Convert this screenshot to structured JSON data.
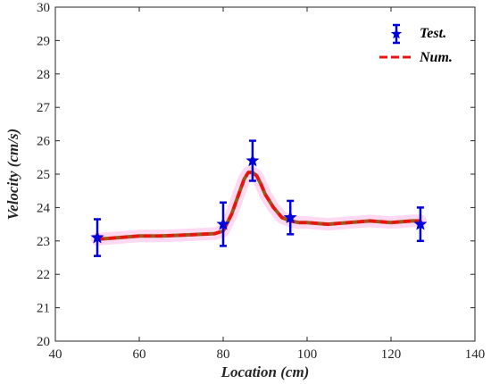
{
  "chart_data": {
    "type": "line",
    "xlabel": "Location (cm)",
    "ylabel": "Velocity (cm/s)",
    "xlim": [
      40,
      140
    ],
    "ylim": [
      20,
      30
    ],
    "xticks": [
      40,
      60,
      80,
      100,
      120,
      140
    ],
    "yticks": [
      20,
      21,
      22,
      23,
      24,
      25,
      26,
      27,
      28,
      29,
      30
    ],
    "grid": false,
    "legend_position": "top-right",
    "series": [
      {
        "name": "Test.",
        "kind": "errorbar",
        "color": "#0000dd",
        "marker": "star",
        "x": [
          50,
          80,
          87,
          96,
          127
        ],
        "y": [
          23.1,
          23.5,
          25.4,
          23.7,
          23.5
        ],
        "err": [
          0.55,
          0.65,
          0.6,
          0.5,
          0.5
        ]
      },
      {
        "name": "Num.",
        "kind": "line",
        "color": "#ee1111",
        "band_color": "#ffccee",
        "x": [
          50,
          55,
          60,
          65,
          70,
          75,
          78,
          80,
          82,
          84,
          85,
          86,
          87,
          88,
          89,
          90,
          92,
          94,
          96,
          98,
          100,
          105,
          110,
          115,
          120,
          125,
          127
        ],
        "y": [
          23.05,
          23.1,
          23.15,
          23.15,
          23.17,
          23.2,
          23.22,
          23.3,
          23.8,
          24.5,
          24.85,
          25.05,
          25.05,
          24.95,
          24.7,
          24.4,
          24.0,
          23.7,
          23.6,
          23.55,
          23.55,
          23.5,
          23.55,
          23.6,
          23.55,
          23.6,
          23.6
        ]
      }
    ]
  }
}
